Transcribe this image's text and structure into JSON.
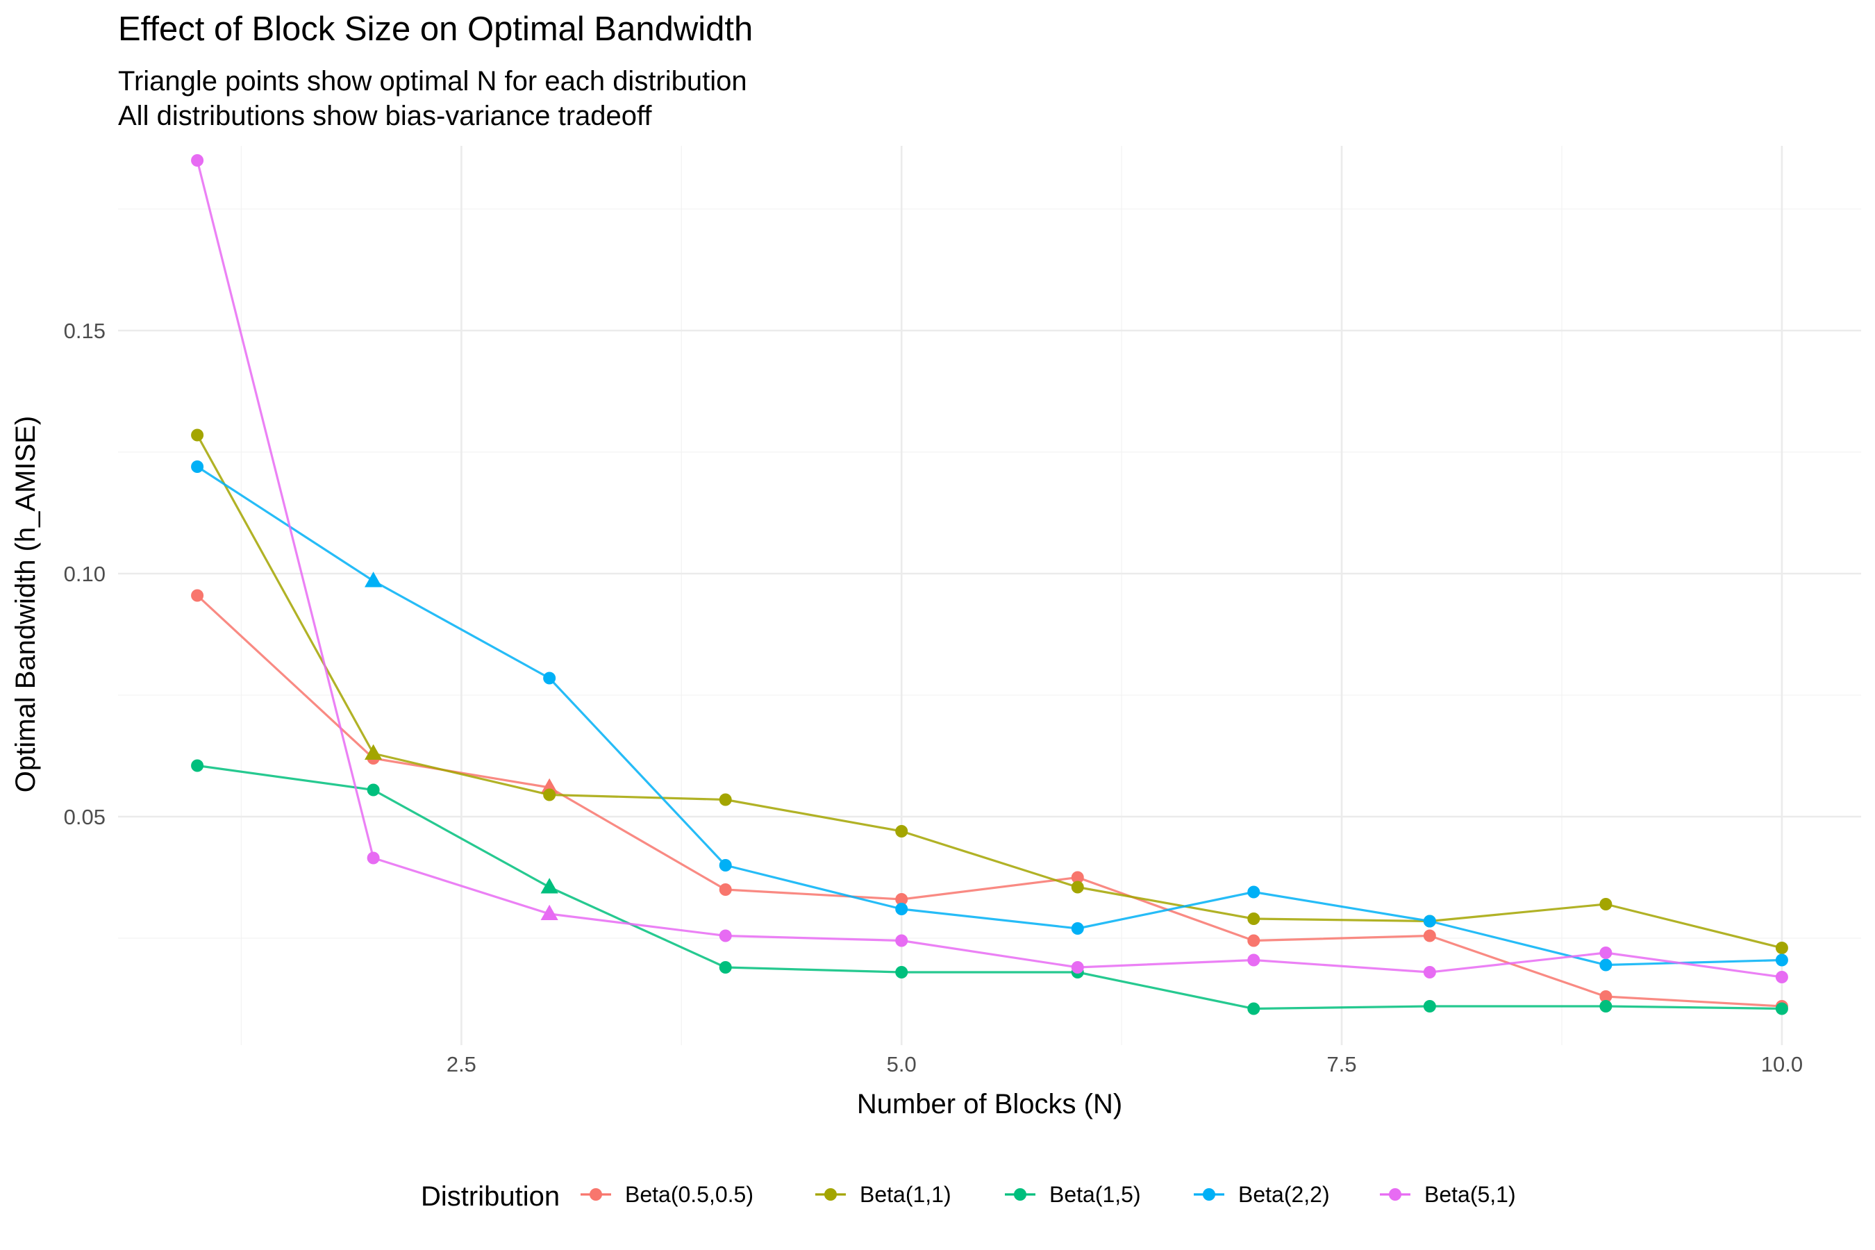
{
  "chart_data": {
    "type": "line",
    "title": "Effect of Block Size on Optimal Bandwidth",
    "subtitle_lines": [
      "Triangle points show optimal N for each distribution",
      "All distributions show bias-variance tradeoff"
    ],
    "xlabel": "Number of Blocks (N)",
    "ylabel": "Optimal Bandwidth (h_AMISE)",
    "xlim": [
      0.55,
      10.45
    ],
    "ylim": [
      0.003,
      0.188
    ],
    "x_ticks": [
      2.5,
      5.0,
      7.5,
      10.0
    ],
    "x_tick_labels": [
      "2.5",
      "5.0",
      "7.5",
      "10.0"
    ],
    "x_minor_ticks": [
      1.25,
      3.75,
      6.25,
      8.75
    ],
    "y_ticks": [
      0.05,
      0.1,
      0.15
    ],
    "y_tick_labels": [
      "0.05",
      "0.10",
      "0.15"
    ],
    "y_minor_ticks": [
      0.025,
      0.075,
      0.125,
      0.175
    ],
    "grid": true,
    "legend_title": "Distribution",
    "legend_position": "bottom",
    "x": [
      1,
      2,
      3,
      4,
      5,
      6,
      7,
      8,
      9,
      10
    ],
    "series": [
      {
        "name": "Beta(0.5,0.5)",
        "color": "#F8766D",
        "values": [
          0.0955,
          0.062,
          0.056,
          0.035,
          0.033,
          0.0375,
          0.0245,
          0.0255,
          0.013,
          0.011
        ],
        "optimal_x": 3
      },
      {
        "name": "Beta(1,1)",
        "color": "#A3A500",
        "values": [
          0.1285,
          0.063,
          0.0545,
          0.0535,
          0.047,
          0.0355,
          0.029,
          0.0285,
          0.032,
          0.023
        ],
        "optimal_x": 2
      },
      {
        "name": "Beta(1,5)",
        "color": "#00BF7D",
        "values": [
          0.0605,
          0.0555,
          0.0355,
          0.019,
          0.018,
          0.018,
          0.0105,
          0.011,
          0.011,
          0.0105
        ],
        "optimal_x": 3
      },
      {
        "name": "Beta(2,2)",
        "color": "#00B0F6",
        "values": [
          0.122,
          0.0985,
          0.0785,
          0.04,
          0.031,
          0.027,
          0.0345,
          0.0285,
          0.0195,
          0.0205
        ],
        "optimal_x": 2
      },
      {
        "name": "Beta(5,1)",
        "color": "#E76BF3",
        "values": [
          0.185,
          0.0415,
          0.03,
          0.0255,
          0.0245,
          0.019,
          0.0205,
          0.018,
          0.022,
          0.017
        ],
        "optimal_x": 3
      }
    ]
  }
}
